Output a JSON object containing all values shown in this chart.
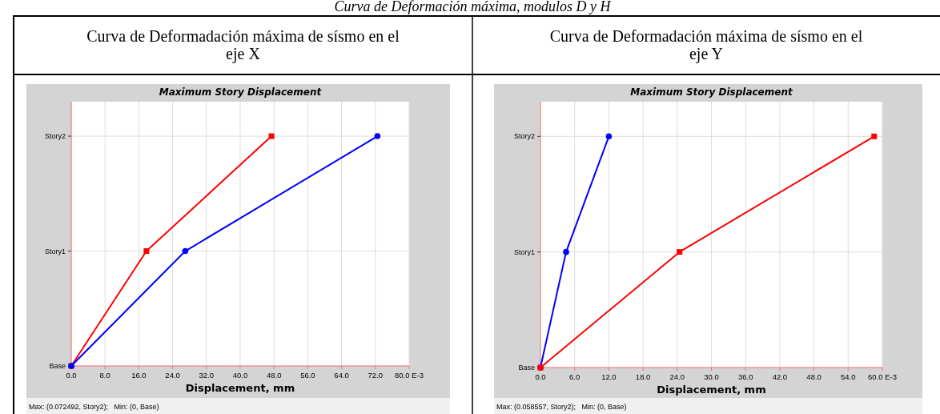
{
  "chart_data": [
    {
      "type": "line",
      "orientation": "horizontal",
      "title": "Curva de Deformadación máxima de sísmo en el eje X",
      "subtitle": "Maximum Story Displacement",
      "xlabel": "Displacement, mm",
      "annotations": [
        "Curva de Deformación máxima, modulos D y H",
        "Max: (0.072492, Story2);   Min: (0, Base)"
      ],
      "categories": [
        "Story2",
        "Story1",
        "Base"
      ],
      "series": [
        {
          "color": "#ff0000",
          "marker": "square",
          "values": [
            47.4,
            17.8,
            0
          ]
        },
        {
          "color": "#0000ff",
          "marker": "circle",
          "values": [
            72.492,
            27.0,
            0
          ]
        }
      ],
      "xlim": [
        0,
        80
      ],
      "xticks": [
        {
          "value": 0,
          "label": "0.0"
        },
        {
          "value": 8,
          "label": "8.0"
        },
        {
          "value": 16,
          "label": "16.0"
        },
        {
          "value": 24,
          "label": "24.0"
        },
        {
          "value": 32,
          "label": "32.0"
        },
        {
          "value": 40,
          "label": "40.0"
        },
        {
          "value": 48,
          "label": "48.0"
        },
        {
          "value": 56,
          "label": "56.0"
        },
        {
          "value": 64,
          "label": "64.0"
        },
        {
          "value": 72,
          "label": "72.0"
        },
        {
          "value": 80,
          "label": "80.0 E-3"
        }
      ],
      "grid": true
    },
    {
      "type": "line",
      "orientation": "horizontal",
      "title": "Curva de Deformadación máxima de sísmo en el eje Y",
      "subtitle": "Maximum Story Displacement",
      "xlabel": "Displacement, mm",
      "annotations": [
        "Max: (0.058557, Story2);   Min: (0, Base)"
      ],
      "categories": [
        "Story2",
        "Story1",
        "Base"
      ],
      "series": [
        {
          "color": "#0000ff",
          "marker": "circle",
          "values": [
            12.0,
            4.5,
            0
          ]
        },
        {
          "color": "#ff0000",
          "marker": "square",
          "values": [
            58.557,
            24.4,
            0
          ]
        }
      ],
      "xlim": [
        0,
        60
      ],
      "xticks": [
        {
          "value": 0,
          "label": "0.0"
        },
        {
          "value": 6,
          "label": "6.0"
        },
        {
          "value": 12,
          "label": "12.0"
        },
        {
          "value": 18,
          "label": "18.0"
        },
        {
          "value": 24,
          "label": "24.0"
        },
        {
          "value": 30,
          "label": "30.0"
        },
        {
          "value": 36,
          "label": "36.0"
        },
        {
          "value": 42,
          "label": "42.0"
        },
        {
          "value": 48,
          "label": "48.0"
        },
        {
          "value": 54,
          "label": "54.0"
        },
        {
          "value": 60,
          "label": "60.0 E-3"
        }
      ],
      "grid": true
    }
  ]
}
